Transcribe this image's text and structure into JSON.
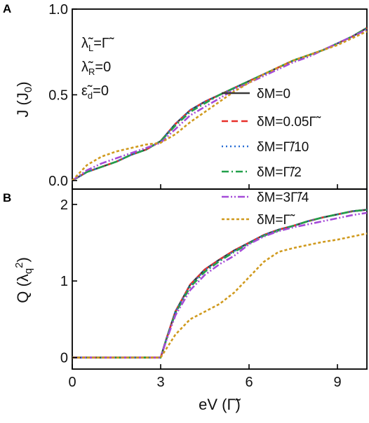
{
  "chart_data": [
    {
      "panel": "A",
      "type": "line",
      "ylabel": "J (J0)",
      "xlabel": "",
      "xlim": [
        0,
        10
      ],
      "ylim": [
        -0.05,
        1.0
      ],
      "x_ticks": [
        0,
        3,
        6,
        9
      ],
      "y_ticks": [
        0.0,
        0.5,
        1.0
      ],
      "y_tick_labels": [
        "0.0",
        "0.5",
        "1.0"
      ],
      "annotations": [
        "λ̃L=Γ̃",
        "λ̃R=0",
        "ε̃d=0"
      ],
      "series": [
        {
          "name": "δM=0",
          "color": "#3a3a3a",
          "dash": "solid",
          "x": [
            0,
            0.5,
            1,
            1.5,
            2,
            2.5,
            3,
            3.5,
            4,
            4.5,
            5,
            5.5,
            6,
            6.5,
            7,
            7.5,
            8,
            8.5,
            9,
            9.5,
            10
          ],
          "y": [
            0,
            0.05,
            0.08,
            0.11,
            0.15,
            0.18,
            0.23,
            0.33,
            0.41,
            0.46,
            0.5,
            0.54,
            0.58,
            0.62,
            0.66,
            0.7,
            0.73,
            0.76,
            0.8,
            0.84,
            0.89
          ]
        },
        {
          "name": "δM=0.05Γ̃",
          "color": "#e8302a",
          "dash": "dash",
          "x": [
            0,
            0.5,
            1,
            1.5,
            2,
            2.5,
            3,
            3.5,
            4,
            4.5,
            5,
            5.5,
            6,
            6.5,
            7,
            7.5,
            8,
            8.5,
            9,
            9.5,
            10
          ],
          "y": [
            0,
            0.05,
            0.08,
            0.11,
            0.15,
            0.18,
            0.23,
            0.33,
            0.41,
            0.46,
            0.5,
            0.54,
            0.58,
            0.62,
            0.66,
            0.7,
            0.73,
            0.76,
            0.8,
            0.84,
            0.89
          ]
        },
        {
          "name": "δM=Γ̃/10",
          "color": "#2a6fd6",
          "dash": "dot",
          "x": [
            0,
            0.5,
            1,
            1.5,
            2,
            2.5,
            3,
            3.5,
            4,
            4.5,
            5,
            5.5,
            6,
            6.5,
            7,
            7.5,
            8,
            8.5,
            9,
            9.5,
            10
          ],
          "y": [
            0,
            0.05,
            0.08,
            0.11,
            0.15,
            0.18,
            0.23,
            0.33,
            0.41,
            0.46,
            0.5,
            0.54,
            0.58,
            0.62,
            0.66,
            0.7,
            0.73,
            0.76,
            0.8,
            0.84,
            0.89
          ]
        },
        {
          "name": "δM=Γ̃/2",
          "color": "#22a04a",
          "dash": "dashdot",
          "x": [
            0,
            0.5,
            1,
            1.5,
            2,
            2.5,
            3,
            3.5,
            4,
            4.5,
            5,
            5.5,
            6,
            6.5,
            7,
            7.5,
            8,
            8.5,
            9,
            9.5,
            10
          ],
          "y": [
            0,
            0.05,
            0.08,
            0.11,
            0.15,
            0.18,
            0.23,
            0.32,
            0.4,
            0.45,
            0.5,
            0.54,
            0.58,
            0.62,
            0.66,
            0.7,
            0.73,
            0.76,
            0.8,
            0.84,
            0.89
          ]
        },
        {
          "name": "δM=3Γ̃/4",
          "color": "#a54bd8",
          "dash": "dashdotdot",
          "x": [
            0,
            0.5,
            1,
            1.5,
            2,
            2.5,
            3,
            3.5,
            4,
            4.5,
            5,
            5.5,
            6,
            6.5,
            7,
            7.5,
            8,
            8.5,
            9,
            9.5,
            10
          ],
          "y": [
            0,
            0.06,
            0.1,
            0.13,
            0.16,
            0.19,
            0.22,
            0.3,
            0.38,
            0.43,
            0.48,
            0.53,
            0.57,
            0.61,
            0.65,
            0.69,
            0.72,
            0.76,
            0.8,
            0.84,
            0.88
          ]
        },
        {
          "name": "δM=Γ̃",
          "color": "#d09a1e",
          "dash": "shortdash",
          "x": [
            0,
            0.5,
            1,
            1.5,
            2,
            2.5,
            3,
            3.5,
            4,
            4.5,
            5,
            5.5,
            6,
            6.5,
            7,
            7.5,
            8,
            8.5,
            9,
            9.5,
            10
          ],
          "y": [
            0,
            0.09,
            0.14,
            0.17,
            0.19,
            0.21,
            0.22,
            0.27,
            0.34,
            0.4,
            0.46,
            0.52,
            0.57,
            0.62,
            0.66,
            0.7,
            0.73,
            0.76,
            0.79,
            0.83,
            0.87
          ]
        }
      ]
    },
    {
      "panel": "B",
      "type": "line",
      "ylabel": "Q (λq2)",
      "xlabel": "eV (Γ̃)",
      "xlim": [
        0,
        10
      ],
      "ylim": [
        -0.15,
        2.2
      ],
      "x_ticks": [
        0,
        3,
        6,
        9
      ],
      "x_tick_labels": [
        "0",
        "3",
        "6",
        "9"
      ],
      "y_ticks": [
        0,
        1,
        2
      ],
      "y_tick_labels": [
        "0",
        "1",
        "2"
      ],
      "series": [
        {
          "name": "δM=0",
          "color": "#3a3a3a",
          "dash": "solid",
          "x": [
            0,
            2.9,
            3,
            3.2,
            3.5,
            4,
            4.5,
            5,
            5.5,
            6,
            6.5,
            7,
            7.5,
            8,
            8.5,
            9,
            9.5,
            10
          ],
          "y": [
            0,
            0,
            0,
            0.25,
            0.6,
            0.95,
            1.15,
            1.28,
            1.4,
            1.5,
            1.6,
            1.67,
            1.72,
            1.78,
            1.83,
            1.87,
            1.91,
            1.93
          ]
        },
        {
          "name": "δM=0.05Γ̃",
          "color": "#e8302a",
          "dash": "dash",
          "x": [
            0,
            2.9,
            3,
            3.2,
            3.5,
            4,
            4.5,
            5,
            5.5,
            6,
            6.5,
            7,
            7.5,
            8,
            8.5,
            9,
            9.5,
            10
          ],
          "y": [
            0,
            0,
            0,
            0.25,
            0.6,
            0.95,
            1.15,
            1.28,
            1.4,
            1.5,
            1.6,
            1.67,
            1.72,
            1.78,
            1.83,
            1.87,
            1.91,
            1.93
          ]
        },
        {
          "name": "δM=Γ̃/10",
          "color": "#2a6fd6",
          "dash": "dot",
          "x": [
            0,
            2.9,
            3,
            3.2,
            3.5,
            4,
            4.5,
            5,
            5.5,
            6,
            6.5,
            7,
            7.5,
            8,
            8.5,
            9,
            9.5,
            10
          ],
          "y": [
            0,
            0,
            0,
            0.25,
            0.6,
            0.94,
            1.14,
            1.27,
            1.39,
            1.5,
            1.6,
            1.67,
            1.72,
            1.78,
            1.83,
            1.87,
            1.91,
            1.93
          ]
        },
        {
          "name": "δM=Γ̃/2",
          "color": "#22a04a",
          "dash": "dashdot",
          "x": [
            0,
            2.9,
            3,
            3.2,
            3.5,
            4,
            4.5,
            5,
            5.5,
            6,
            6.5,
            7,
            7.5,
            8,
            8.5,
            9,
            9.5,
            10
          ],
          "y": [
            0,
            0,
            0,
            0.24,
            0.58,
            0.92,
            1.12,
            1.26,
            1.38,
            1.49,
            1.59,
            1.66,
            1.72,
            1.78,
            1.83,
            1.87,
            1.91,
            1.93
          ]
        },
        {
          "name": "δM=3Γ̃/4",
          "color": "#a54bd8",
          "dash": "dashdotdot",
          "x": [
            0,
            2.9,
            3,
            3.2,
            3.5,
            4,
            4.5,
            5,
            5.5,
            6,
            6.5,
            7,
            7.5,
            8,
            8.5,
            9,
            9.5,
            10
          ],
          "y": [
            0,
            0,
            0,
            0.23,
            0.55,
            0.88,
            1.08,
            1.22,
            1.33,
            1.48,
            1.58,
            1.65,
            1.7,
            1.74,
            1.78,
            1.82,
            1.86,
            1.89
          ]
        },
        {
          "name": "δM=Γ̃",
          "color": "#d09a1e",
          "dash": "shortdash",
          "x": [
            0,
            2.9,
            3,
            3.2,
            3.5,
            4,
            4.5,
            5,
            5.5,
            6,
            6.5,
            7,
            7.5,
            8,
            8.5,
            9,
            9.5,
            10
          ],
          "y": [
            0,
            0,
            0,
            0.12,
            0.3,
            0.5,
            0.6,
            0.7,
            0.85,
            1.05,
            1.25,
            1.38,
            1.43,
            1.47,
            1.51,
            1.54,
            1.58,
            1.62
          ]
        }
      ]
    }
  ]
}
